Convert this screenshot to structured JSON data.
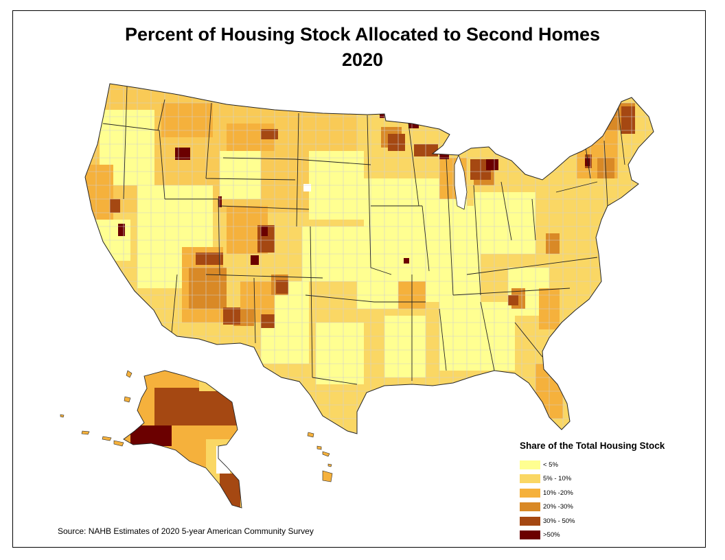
{
  "title": {
    "line1": "Percent of Housing Stock Allocated to Second Homes",
    "line2": "2020"
  },
  "legend": {
    "title": "Share of the Total Housing Stock",
    "items": [
      {
        "label": "< 5%",
        "color": "#FFFF91"
      },
      {
        "label": "5% - 10%",
        "color": "#FAD764"
      },
      {
        "label": "10% -20%",
        "color": "#F5B13C"
      },
      {
        "label": "20% -30%",
        "color": "#D98926"
      },
      {
        "label": "30% - 50%",
        "color": "#A54812"
      },
      {
        "label": ">50%",
        "color": "#6B0000"
      }
    ]
  },
  "source": "Source: NAHB Estimates of 2020 5-year American Community Survey"
}
